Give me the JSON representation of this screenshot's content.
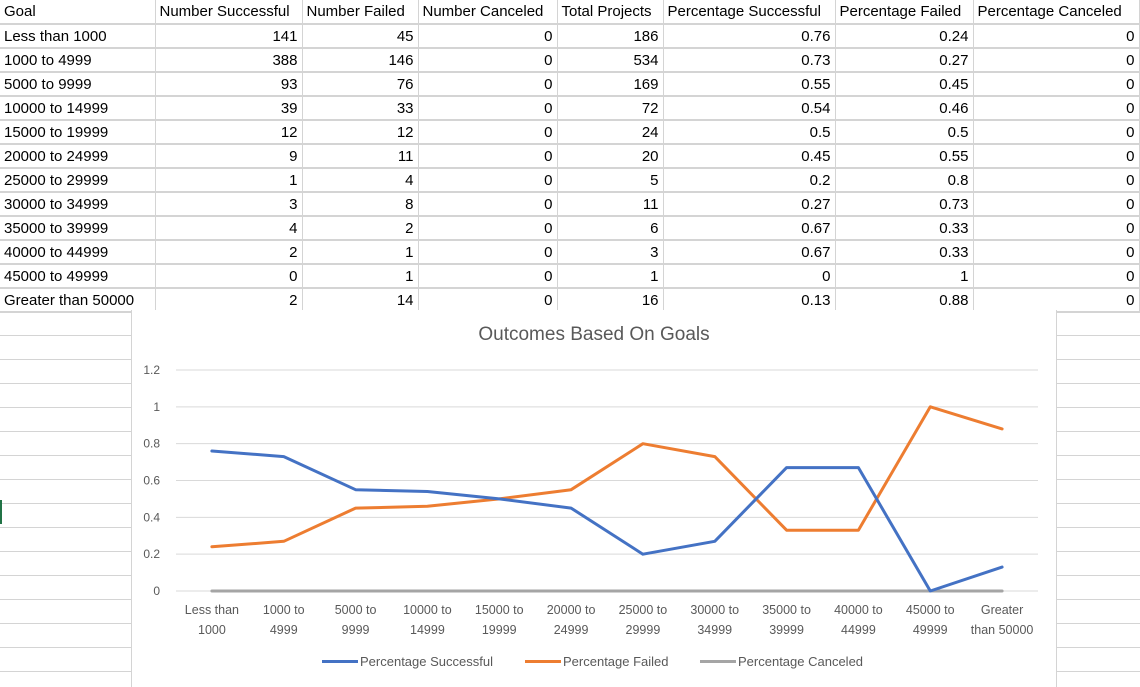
{
  "sheet": {
    "headers": [
      "Goal",
      "Number Successful",
      "Number Failed",
      "Number Canceled",
      "Total Projects",
      "Percentage Successful",
      "Percentage Failed",
      "Percentage Canceled"
    ],
    "rows": [
      [
        "Less than 1000",
        "141",
        "45",
        "0",
        "186",
        "0.76",
        "0.24",
        "0"
      ],
      [
        "1000 to 4999",
        "388",
        "146",
        "0",
        "534",
        "0.73",
        "0.27",
        "0"
      ],
      [
        "5000 to 9999",
        "93",
        "76",
        "0",
        "169",
        "0.55",
        "0.45",
        "0"
      ],
      [
        "10000 to 14999",
        "39",
        "33",
        "0",
        "72",
        "0.54",
        "0.46",
        "0"
      ],
      [
        "15000 to 19999",
        "12",
        "12",
        "0",
        "24",
        "0.5",
        "0.5",
        "0"
      ],
      [
        "20000 to 24999",
        "9",
        "11",
        "0",
        "20",
        "0.45",
        "0.55",
        "0"
      ],
      [
        "25000 to 29999",
        "1",
        "4",
        "0",
        "5",
        "0.2",
        "0.8",
        "0"
      ],
      [
        "30000 to 34999",
        "3",
        "8",
        "0",
        "11",
        "0.27",
        "0.73",
        "0"
      ],
      [
        "35000 to 39999",
        "4",
        "2",
        "0",
        "6",
        "0.67",
        "0.33",
        "0"
      ],
      [
        "40000 to 44999",
        "2",
        "1",
        "0",
        "3",
        "0.67",
        "0.33",
        "0"
      ],
      [
        "45000 to 49999",
        "0",
        "1",
        "0",
        "1",
        "0",
        "1",
        "0"
      ],
      [
        "Greater than 50000",
        "2",
        "14",
        "0",
        "16",
        "0.13",
        "0.88",
        "0"
      ]
    ]
  },
  "chart_data": {
    "type": "line",
    "title": "Outcomes Based On Goals",
    "xlabel": "",
    "ylabel": "",
    "categories": [
      [
        "Less than",
        "1000"
      ],
      [
        "1000 to",
        "4999"
      ],
      [
        "5000 to",
        "9999"
      ],
      [
        "10000 to",
        "14999"
      ],
      [
        "15000 to",
        "19999"
      ],
      [
        "20000 to",
        "24999"
      ],
      [
        "25000 to",
        "29999"
      ],
      [
        "30000 to",
        "34999"
      ],
      [
        "35000 to",
        "39999"
      ],
      [
        "40000 to",
        "44999"
      ],
      [
        "45000 to",
        "49999"
      ],
      [
        "Greater",
        "than 50000"
      ]
    ],
    "ylim": [
      0,
      1.2
    ],
    "yticks": [
      0,
      0.2,
      0.4,
      0.6,
      0.8,
      1,
      1.2
    ],
    "ytick_labels": [
      "0",
      "0.2",
      "0.4",
      "0.6",
      "0.8",
      "1",
      "1.2"
    ],
    "grid": true,
    "legend_position": "bottom",
    "series": [
      {
        "name": "Percentage Successful",
        "color": "#4472c4",
        "values": [
          0.76,
          0.73,
          0.55,
          0.54,
          0.5,
          0.45,
          0.2,
          0.27,
          0.67,
          0.67,
          0,
          0.13
        ]
      },
      {
        "name": "Percentage Failed",
        "color": "#ed7d31",
        "values": [
          0.24,
          0.27,
          0.45,
          0.46,
          0.5,
          0.55,
          0.8,
          0.73,
          0.33,
          0.33,
          1,
          0.88
        ]
      },
      {
        "name": "Percentage Canceled",
        "color": "#a5a5a5",
        "values": [
          0,
          0,
          0,
          0,
          0,
          0,
          0,
          0,
          0,
          0,
          0,
          0
        ]
      }
    ]
  }
}
